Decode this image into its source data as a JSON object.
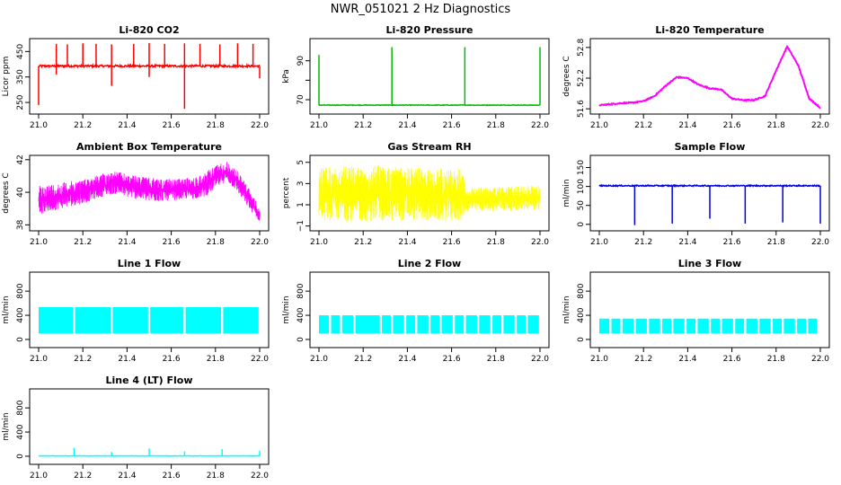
{
  "figure_title": "NWR_051021  2 Hz Diagnostics",
  "chart_data": [
    {
      "type": "line",
      "title": "Li-820 CO2",
      "ylabel": "Licor ppm",
      "color": "#ff0000",
      "xlim": [
        21.0,
        22.0
      ],
      "ylim": [
        215,
        490
      ],
      "xticks": [
        21.0,
        21.2,
        21.4,
        21.6,
        21.8,
        22.0
      ],
      "xtick_labels": [
        "21.0",
        "21.2",
        "21.4",
        "21.6",
        "21.8",
        "22.0"
      ],
      "yticks": [
        250,
        350,
        450
      ],
      "ytick_labels": [
        "250",
        "350",
        "450"
      ],
      "pattern": "baseline_spikes",
      "baseline": 393,
      "noise": 4,
      "spikes_up": [
        [
          21.08,
          480
        ],
        [
          21.13,
          478
        ],
        [
          21.2,
          482
        ],
        [
          21.26,
          480
        ],
        [
          21.33,
          478
        ],
        [
          21.43,
          480
        ],
        [
          21.5,
          483
        ],
        [
          21.57,
          480
        ],
        [
          21.66,
          482
        ],
        [
          21.73,
          480
        ],
        [
          21.82,
          478
        ],
        [
          21.9,
          482
        ],
        [
          21.97,
          480
        ]
      ],
      "spikes_down": [
        [
          21.0,
          240
        ],
        [
          21.33,
          315
        ],
        [
          21.66,
          225
        ],
        [
          21.08,
          360
        ],
        [
          21.5,
          350
        ],
        [
          22.0,
          345
        ]
      ]
    },
    {
      "type": "line",
      "title": "Li-820 Pressure",
      "ylabel": "kPa",
      "color": "#00bb00",
      "xlim": [
        21.0,
        22.0
      ],
      "ylim": [
        64,
        100
      ],
      "xticks": [
        21.0,
        21.2,
        21.4,
        21.6,
        21.8,
        22.0
      ],
      "xtick_labels": [
        "21.0",
        "21.2",
        "21.4",
        "21.6",
        "21.8",
        "22.0"
      ],
      "yticks": [
        70,
        80,
        90
      ],
      "ytick_labels": [
        "70",
        "",
        "90"
      ],
      "pattern": "baseline_spikes",
      "baseline": 67.2,
      "noise": 0.15,
      "spikes_up": [
        [
          21.0,
          93
        ],
        [
          21.33,
          97
        ],
        [
          21.66,
          97
        ],
        [
          22.0,
          97
        ]
      ],
      "spikes_down": []
    },
    {
      "type": "line",
      "title": "Li-820 Temperature",
      "ylabel": "degrees C",
      "color": "#ff00ff",
      "xlim": [
        21.0,
        22.0
      ],
      "ylim": [
        51.55,
        52.92
      ],
      "xticks": [
        21.0,
        21.2,
        21.4,
        21.6,
        21.8,
        22.0
      ],
      "xtick_labels": [
        "21.0",
        "21.2",
        "21.4",
        "21.6",
        "21.8",
        "22.0"
      ],
      "yticks": [
        51.6,
        52.2,
        52.8
      ],
      "ytick_labels": [
        "51.6",
        "52.2",
        "52.8"
      ],
      "pattern": "series",
      "x": [
        21.0,
        21.05,
        21.1,
        21.15,
        21.2,
        21.25,
        21.3,
        21.35,
        21.4,
        21.45,
        21.5,
        21.55,
        21.6,
        21.65,
        21.7,
        21.75,
        21.8,
        21.85,
        21.9,
        21.95,
        22.0
      ],
      "values": [
        51.67,
        51.69,
        51.71,
        51.72,
        51.75,
        51.85,
        52.05,
        52.22,
        52.2,
        52.07,
        52.0,
        51.98,
        51.8,
        51.77,
        51.77,
        51.85,
        52.35,
        52.82,
        52.45,
        51.8,
        51.62
      ]
    },
    {
      "type": "line",
      "title": "Ambient Box Temperature",
      "ylabel": "degrees C",
      "color": "#ff00ff",
      "xlim": [
        21.0,
        22.0
      ],
      "ylim": [
        37.8,
        42.1
      ],
      "xticks": [
        21.0,
        21.2,
        21.4,
        21.6,
        21.8,
        22.0
      ],
      "xtick_labels": [
        "21.0",
        "21.2",
        "21.4",
        "21.6",
        "21.8",
        "22.0"
      ],
      "yticks": [
        38,
        40,
        42
      ],
      "ytick_labels": [
        "38",
        "40",
        "42"
      ],
      "pattern": "band",
      "x": [
        21.0,
        21.1,
        21.2,
        21.3,
        21.35,
        21.4,
        21.5,
        21.6,
        21.7,
        21.75,
        21.8,
        21.85,
        21.9,
        21.95,
        22.0
      ],
      "lower": [
        38.6,
        39.0,
        39.3,
        39.8,
        39.9,
        39.7,
        39.4,
        39.5,
        39.6,
        39.7,
        40.2,
        40.7,
        40.0,
        39.0,
        38.2
      ],
      "upper": [
        40.4,
        40.6,
        40.8,
        41.2,
        41.3,
        41.1,
        40.9,
        40.8,
        40.9,
        41.2,
        41.7,
        41.9,
        41.3,
        40.3,
        39.0
      ]
    },
    {
      "type": "line",
      "title": "Gas Stream RH",
      "ylabel": "percent",
      "color": "#ffff00",
      "xlim": [
        21.0,
        22.0
      ],
      "ylim": [
        -1.2,
        5.4
      ],
      "xticks": [
        21.0,
        21.2,
        21.4,
        21.6,
        21.8,
        22.0
      ],
      "xtick_labels": [
        "21.0",
        "21.2",
        "21.4",
        "21.6",
        "21.8",
        "22.0"
      ],
      "yticks": [
        -1,
        1,
        3,
        5
      ],
      "ytick_labels": [
        "−1",
        "1",
        "3",
        "5"
      ],
      "pattern": "band",
      "x": [
        21.0,
        21.2,
        21.4,
        21.6,
        21.65,
        21.66,
        21.8,
        22.0
      ],
      "lower": [
        -0.5,
        -0.6,
        -0.5,
        -0.6,
        -0.5,
        0.4,
        0.4,
        0.5
      ],
      "upper": [
        4.5,
        4.8,
        4.6,
        4.4,
        4.7,
        2.6,
        2.7,
        2.8
      ]
    },
    {
      "type": "line",
      "title": "Sample Flow",
      "ylabel": "ml/min",
      "color": "#0000dd",
      "xlim": [
        21.0,
        22.0
      ],
      "ylim": [
        -10,
        175
      ],
      "xticks": [
        21.0,
        21.2,
        21.4,
        21.6,
        21.8,
        22.0
      ],
      "xtick_labels": [
        "21.0",
        "21.2",
        "21.4",
        "21.6",
        "21.8",
        "22.0"
      ],
      "yticks": [
        0,
        50,
        100,
        150
      ],
      "ytick_labels": [
        "0",
        "50",
        "100",
        "150"
      ],
      "pattern": "baseline_spikes",
      "baseline": 102,
      "noise": 1.5,
      "spikes_up": [],
      "spikes_down": [
        [
          21.16,
          -2
        ],
        [
          21.33,
          2
        ],
        [
          21.5,
          15
        ],
        [
          21.66,
          2
        ],
        [
          21.83,
          5
        ],
        [
          22.0,
          2
        ]
      ]
    },
    {
      "type": "line",
      "title": "Line 1 Flow",
      "ylabel": "ml/min",
      "color": "#00ffff",
      "xlim": [
        21.0,
        22.0
      ],
      "ylim": [
        -90,
        1070
      ],
      "xticks": [
        21.0,
        21.2,
        21.4,
        21.6,
        21.8,
        22.0
      ],
      "xtick_labels": [
        "21.0",
        "21.2",
        "21.4",
        "21.6",
        "21.8",
        "22.0"
      ],
      "yticks": [
        0,
        400,
        800
      ],
      "ytick_labels": [
        "0",
        "400",
        "800"
      ],
      "pattern": "blocks",
      "lower": 100,
      "upper": 535,
      "gaps": [
        21.16,
        21.33,
        21.5,
        21.66,
        21.83,
        22.0
      ]
    },
    {
      "type": "line",
      "title": "Line 2 Flow",
      "ylabel": "ml/min",
      "color": "#00ffff",
      "xlim": [
        21.0,
        22.0
      ],
      "ylim": [
        -90,
        1070
      ],
      "xticks": [
        21.0,
        21.2,
        21.4,
        21.6,
        21.8,
        22.0
      ],
      "xtick_labels": [
        "21.0",
        "21.2",
        "21.4",
        "21.6",
        "21.8",
        "22.0"
      ],
      "yticks": [
        0,
        400,
        800
      ],
      "ytick_labels": [
        "0",
        "400",
        "800"
      ],
      "pattern": "blocks",
      "lower": 100,
      "upper": 400,
      "gaps": [
        21.05,
        21.1,
        21.16,
        21.28,
        21.33,
        21.39,
        21.44,
        21.5,
        21.55,
        21.61,
        21.66,
        21.72,
        21.78,
        21.83,
        21.89,
        21.94
      ]
    },
    {
      "type": "line",
      "title": "Line 3 Flow",
      "ylabel": "ml/min",
      "color": "#00ffff",
      "xlim": [
        21.0,
        22.0
      ],
      "ylim": [
        -90,
        1070
      ],
      "xticks": [
        21.0,
        21.2,
        21.4,
        21.6,
        21.8,
        22.0
      ],
      "xtick_labels": [
        "21.0",
        "21.2",
        "21.4",
        "21.6",
        "21.8",
        "22.0"
      ],
      "yticks": [
        0,
        400,
        800
      ],
      "ytick_labels": [
        "0",
        "400",
        "800"
      ],
      "pattern": "blocks",
      "lower": 100,
      "upper": 345,
      "gaps": [
        21.05,
        21.1,
        21.16,
        21.22,
        21.28,
        21.33,
        21.39,
        21.44,
        21.5,
        21.55,
        21.61,
        21.66,
        21.72,
        21.78,
        21.83,
        21.89,
        21.94,
        21.99
      ]
    },
    {
      "type": "line",
      "title": "Line 4 (LT) Flow",
      "ylabel": "ml/min",
      "color": "#00ffff",
      "xlim": [
        21.0,
        22.0
      ],
      "ylim": [
        -90,
        1070
      ],
      "xticks": [
        21.0,
        21.2,
        21.4,
        21.6,
        21.8,
        22.0
      ],
      "xtick_labels": [
        "21.0",
        "21.2",
        "21.4",
        "21.6",
        "21.8",
        "22.0"
      ],
      "yticks": [
        0,
        400,
        800
      ],
      "ytick_labels": [
        "0",
        "400",
        "800"
      ],
      "pattern": "baseline_spikes",
      "baseline": 5,
      "noise": 3,
      "spikes_up": [
        [
          21.16,
          140
        ],
        [
          21.33,
          70
        ],
        [
          21.5,
          130
        ],
        [
          21.66,
          80
        ],
        [
          21.83,
          120
        ],
        [
          22.0,
          90
        ]
      ],
      "spikes_down": []
    }
  ]
}
